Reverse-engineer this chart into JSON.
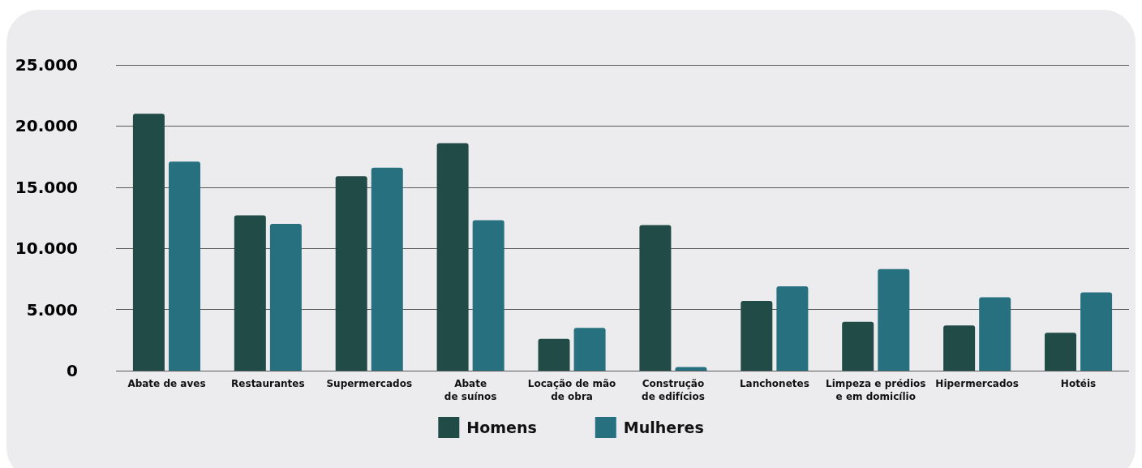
{
  "chart_data": {
    "type": "bar",
    "categories": [
      "Abate de aves",
      "Restaurantes",
      "Supermercados",
      "Abate\nde suínos",
      "Locação de mão\nde obra",
      "Construção\nde edifícios",
      "Lanchonetes",
      "Limpeza e prédios\ne em domicílio",
      "Hipermercados",
      "Hotéis"
    ],
    "series": [
      {
        "name": "Homens",
        "color": "#204b47",
        "values": [
          21000,
          12700,
          15900,
          18600,
          2600,
          11900,
          5700,
          4000,
          3700,
          3100
        ]
      },
      {
        "name": "Mulheres",
        "color": "#267080",
        "values": [
          17100,
          12000,
          16600,
          12300,
          3500,
          300,
          6900,
          8300,
          6000,
          6400
        ]
      }
    ],
    "ylim": [
      0,
      25000
    ],
    "yticks": [
      0,
      {
        "value": 5000,
        "label": "5.000"
      },
      {
        "value": 10000,
        "label": "10.000"
      },
      {
        "value": 15000,
        "label": "15.000"
      },
      {
        "value": 20000,
        "label": "20.000"
      },
      {
        "value": 25000,
        "label": "25.000"
      }
    ],
    "grid": "y",
    "legend": "bottom"
  }
}
